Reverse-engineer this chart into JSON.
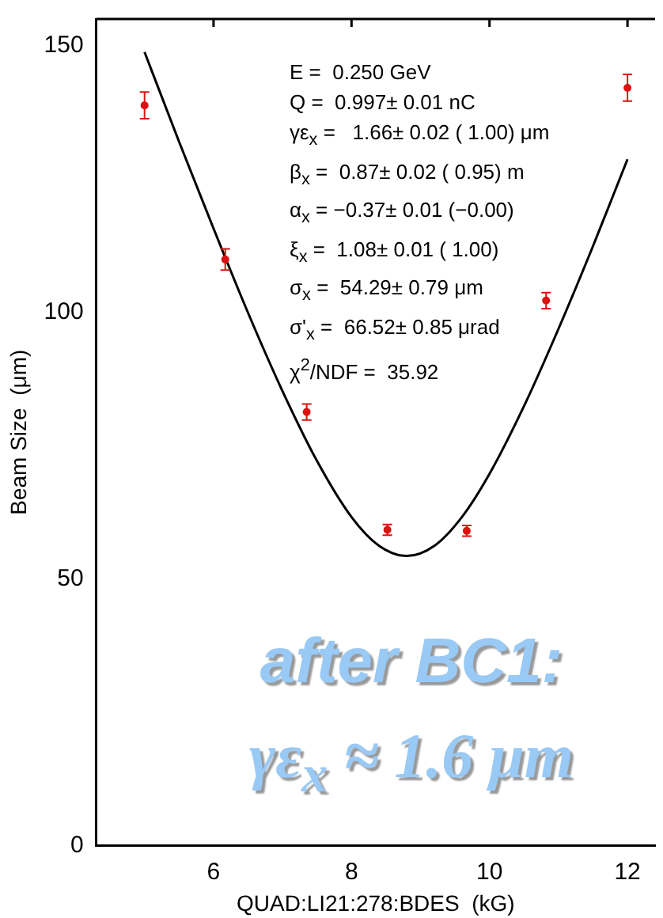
{
  "chart_data": {
    "type": "scatter",
    "xlabel": "QUAD:LI21:278:BDES  (kG)",
    "ylabel": "Beam Size  (μm)",
    "xlim": [
      4.3,
      12.4
    ],
    "xticks": [
      6,
      8,
      10,
      12
    ],
    "ylim": [
      0,
      155
    ],
    "yticks": [
      0,
      50,
      100,
      150
    ],
    "grid": false,
    "legend": false,
    "series": [
      {
        "type": "scatter",
        "color": "#dd1111",
        "marker": "circle",
        "x": [
          5.0,
          6.17,
          7.35,
          8.52,
          9.67,
          10.82,
          12.0
        ],
        "values": [
          138.8,
          109.9,
          81.3,
          59.2,
          59.0,
          102.2,
          142.1
        ],
        "errors": [
          2.5,
          2,
          1.5,
          1,
          1,
          1.5,
          2.5
        ]
      },
      {
        "type": "line",
        "color": "#000000",
        "marker": "none",
        "line_style": "solid",
        "x": [
          5,
          5.5,
          6,
          6.5,
          7,
          7.5,
          8,
          8.4,
          8.8,
          9.2,
          9.6,
          10,
          10.5,
          11,
          11.5,
          12
        ],
        "values": [
          148.8,
          132.0,
          115.7,
          99.9,
          85.2,
          72.1,
          61.6,
          56.2,
          54.3,
          56.2,
          61.6,
          69.7,
          82.4,
          96.9,
          112.4,
          128.7
        ]
      }
    ],
    "annotations": [
      "E =  0.250 GeV",
      "Q =  0.997± 0.01 nC",
      "γε$_{x}$ =   1.66± 0.02 ( 1.00) μm",
      "β$_{x}$ =  0.87± 0.02 ( 0.95) m",
      "α$_{x}$ = −0.37± 0.01 (−0.00)",
      "ξ$_{x}$ =  1.08± 0.01 ( 1.00)",
      "σ$_{x}$ =  54.29± 0.79 μm",
      "σ'$_{x}$ =  66.52± 0.85 μrad",
      "χ$^{2}$/NDF =  35.92",
      "after BC1:",
      "γε$_{x}$ ≈ 1.6 μm"
    ]
  }
}
